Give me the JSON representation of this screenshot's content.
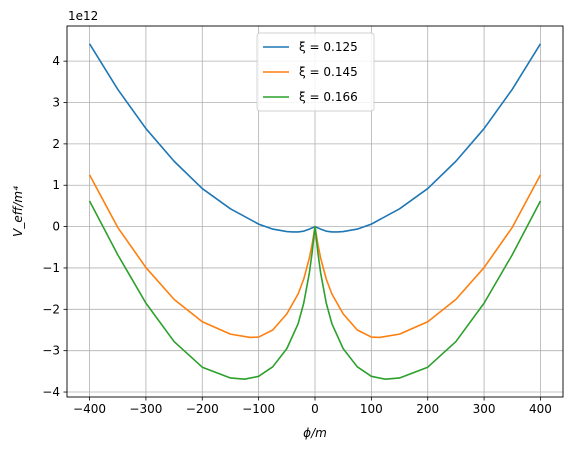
{
  "chart_data": {
    "type": "line",
    "title": "",
    "xlabel": "ϕ/m",
    "ylabel": "V_eff/m⁴",
    "y_offset_label": "1e12",
    "xlim": [
      -440,
      440
    ],
    "ylim": [
      -4.12,
      4.85
    ],
    "xticks": [
      -400,
      -300,
      -200,
      -100,
      0,
      100,
      200,
      300,
      400
    ],
    "xtick_labels": [
      "−400",
      "−300",
      "−200",
      "−100",
      "0",
      "100",
      "200",
      "300",
      "400"
    ],
    "yticks": [
      -4,
      -3,
      -2,
      -1,
      0,
      1,
      2,
      3,
      4
    ],
    "ytick_labels": [
      "−4",
      "−3",
      "−2",
      "−1",
      "0",
      "1",
      "2",
      "3",
      "4"
    ],
    "grid": true,
    "legend_position": "top-center",
    "series": [
      {
        "name": "ξ = 0.125",
        "color": "#1f77b4",
        "x": [
          -400,
          -350,
          -300,
          -250,
          -200,
          -150,
          -100,
          -75,
          -50,
          -40,
          -30,
          -20,
          -10,
          -5,
          0,
          5,
          10,
          20,
          30,
          40,
          50,
          75,
          100,
          150,
          200,
          250,
          300,
          350,
          400
        ],
        "y": [
          4.42,
          3.32,
          2.37,
          1.58,
          0.92,
          0.43,
          0.06,
          -0.06,
          -0.12,
          -0.13,
          -0.13,
          -0.11,
          -0.06,
          -0.03,
          0.0,
          -0.03,
          -0.06,
          -0.11,
          -0.13,
          -0.13,
          -0.12,
          -0.06,
          0.06,
          0.43,
          0.92,
          1.58,
          2.37,
          3.32,
          4.42
        ]
      },
      {
        "name": "ξ = 0.145",
        "color": "#ff7f0e",
        "x": [
          -400,
          -350,
          -300,
          -250,
          -200,
          -150,
          -115,
          -100,
          -75,
          -50,
          -30,
          -20,
          -10,
          -5,
          0,
          5,
          10,
          20,
          30,
          50,
          75,
          100,
          115,
          150,
          200,
          250,
          300,
          350,
          400
        ],
        "y": [
          1.25,
          -0.02,
          -0.99,
          -1.76,
          -2.3,
          -2.6,
          -2.68,
          -2.67,
          -2.5,
          -2.11,
          -1.63,
          -1.27,
          -0.76,
          -0.42,
          0.0,
          -0.42,
          -0.76,
          -1.27,
          -1.63,
          -2.11,
          -2.5,
          -2.67,
          -2.68,
          -2.6,
          -2.3,
          -1.76,
          -0.99,
          -0.02,
          1.25
        ]
      },
      {
        "name": "ξ = 0.166",
        "color": "#2ca02c",
        "x": [
          -400,
          -350,
          -300,
          -250,
          -200,
          -150,
          -125,
          -100,
          -75,
          -50,
          -30,
          -20,
          -10,
          -5,
          0,
          5,
          10,
          20,
          30,
          50,
          75,
          100,
          125,
          150,
          200,
          250,
          300,
          350,
          400
        ],
        "y": [
          0.62,
          -0.68,
          -1.85,
          -2.78,
          -3.4,
          -3.66,
          -3.69,
          -3.62,
          -3.39,
          -2.95,
          -2.35,
          -1.85,
          -1.12,
          -0.62,
          0.0,
          -0.62,
          -1.12,
          -1.85,
          -2.35,
          -2.95,
          -3.39,
          -3.62,
          -3.69,
          -3.66,
          -3.4,
          -2.78,
          -1.85,
          -0.68,
          0.62
        ]
      }
    ]
  }
}
